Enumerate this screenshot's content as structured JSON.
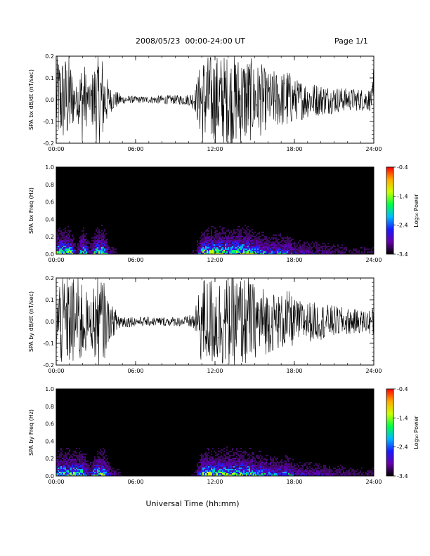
{
  "header": {
    "title": "2008/05/23  00:00-24:00 UT",
    "page": "Page 1/1"
  },
  "footer": {
    "xlabel": "Universal Time (hh:mm)"
  },
  "colorbar": {
    "label": "Log₁₀ Power",
    "ticks": [
      "-0.4",
      "-1.4",
      "-2.4",
      "-3.4"
    ],
    "range": [
      -3.4,
      -0.4
    ],
    "colors": [
      "#000000",
      "#6600aa",
      "#1a1aff",
      "#00bbff",
      "#00ff44",
      "#ccff00",
      "#ffaa00",
      "#ff0000"
    ]
  },
  "chart_data": [
    {
      "type": "line",
      "panel": "bx_time_series",
      "ylabel": "SPA bx dB/dt (nT/sec)",
      "xlim": [
        0,
        24
      ],
      "ylim": [
        -0.2,
        0.2
      ],
      "xticks": [
        "00:00",
        "06:00",
        "12:00",
        "18:00",
        "24:00"
      ],
      "yticks": [
        "0.2",
        "0.1",
        "0.0",
        "-0.1",
        "-0.2"
      ],
      "series": [
        {
          "hours": [
            0,
            0.5,
            1.0,
            1.5,
            2.0,
            2.5,
            3.0,
            3.5,
            4.0,
            5.0,
            6.0,
            7.0,
            8.0,
            9.0,
            10.0,
            10.5,
            11.0,
            11.5,
            12.0,
            12.5,
            13.0,
            13.5,
            14.0,
            14.5,
            15.0,
            15.5,
            16.0,
            16.5,
            17.0,
            17.5,
            18.0,
            18.5,
            19.0,
            20.0,
            21.0,
            22.0,
            23.0,
            23.9,
            24.0
          ],
          "amplitude": [
            0.2,
            0.2,
            0.2,
            0.06,
            0.2,
            0.06,
            0.2,
            0.2,
            0.06,
            0.02,
            0.015,
            0.015,
            0.02,
            0.02,
            0.025,
            0.05,
            0.2,
            0.2,
            0.2,
            0.2,
            0.2,
            0.2,
            0.2,
            0.2,
            0.16,
            0.16,
            0.12,
            0.13,
            0.12,
            0.14,
            0.09,
            0.09,
            0.08,
            0.07,
            0.06,
            0.05,
            0.05,
            0.05,
            0.2
          ]
        }
      ]
    },
    {
      "type": "heatmap",
      "panel": "bx_spectrogram",
      "ylabel": "SPA bx Freq (Hz)",
      "xlim": [
        0,
        24
      ],
      "ylim": [
        0,
        1.0
      ],
      "xticks": [
        "00:00",
        "06:00",
        "12:00",
        "18:00",
        "24:00"
      ],
      "yticks": [
        "1.0",
        "0.8",
        "0.6",
        "0.4",
        "0.2",
        "0.0"
      ],
      "zlabel": "Log₁₀ Power",
      "zlim": [
        -3.4,
        -0.4
      ],
      "activity": {
        "hours": [
          0,
          0.5,
          1.0,
          1.5,
          2.0,
          2.5,
          3.0,
          3.5,
          4.0,
          5.0,
          6.0,
          7.0,
          8.0,
          9.0,
          10.0,
          10.5,
          11.0,
          11.5,
          12.0,
          12.5,
          13.0,
          13.5,
          14.0,
          14.5,
          15.0,
          15.5,
          16.0,
          16.5,
          17.0,
          17.5,
          18.0,
          18.5,
          19.0,
          20.0,
          21.0,
          22.0,
          23.0,
          23.9,
          24.0
        ],
        "level": [
          0.2,
          0.2,
          0.2,
          0.06,
          0.2,
          0.06,
          0.2,
          0.2,
          0.06,
          0.02,
          0.015,
          0.015,
          0.02,
          0.02,
          0.025,
          0.05,
          0.2,
          0.2,
          0.2,
          0.2,
          0.2,
          0.2,
          0.2,
          0.2,
          0.16,
          0.16,
          0.12,
          0.13,
          0.12,
          0.14,
          0.09,
          0.09,
          0.08,
          0.07,
          0.06,
          0.05,
          0.05,
          0.05,
          0.2
        ]
      }
    },
    {
      "type": "line",
      "panel": "by_time_series",
      "ylabel": "SPA by dB/dt (nT/sec)",
      "xlim": [
        0,
        24
      ],
      "ylim": [
        -0.2,
        0.2
      ],
      "xticks": [
        "00:00",
        "06:00",
        "12:00",
        "18:00",
        "24:00"
      ],
      "yticks": [
        "0.2",
        "0.1",
        "0.0",
        "-0.1",
        "-0.2"
      ],
      "series": [
        {
          "hours": [
            0,
            0.5,
            1.0,
            1.5,
            2.0,
            2.5,
            3.0,
            3.5,
            4.0,
            5.0,
            6.0,
            7.0,
            8.0,
            9.0,
            10.0,
            10.5,
            11.0,
            11.5,
            12.0,
            12.5,
            13.0,
            13.5,
            14.0,
            14.5,
            15.0,
            15.5,
            16.0,
            16.5,
            17.0,
            17.5,
            18.0,
            18.5,
            19.0,
            20.0,
            21.0,
            22.0,
            23.0,
            23.9,
            24.0
          ],
          "amplitude": [
            0.2,
            0.2,
            0.2,
            0.2,
            0.2,
            0.08,
            0.2,
            0.2,
            0.08,
            0.03,
            0.02,
            0.02,
            0.02,
            0.02,
            0.025,
            0.05,
            0.2,
            0.2,
            0.2,
            0.2,
            0.2,
            0.2,
            0.2,
            0.2,
            0.16,
            0.16,
            0.14,
            0.13,
            0.12,
            0.14,
            0.1,
            0.09,
            0.09,
            0.08,
            0.07,
            0.06,
            0.05,
            0.06,
            0.2
          ]
        }
      ]
    },
    {
      "type": "heatmap",
      "panel": "by_spectrogram",
      "ylabel": "SPA by Freq (Hz)",
      "xlim": [
        0,
        24
      ],
      "ylim": [
        0,
        1.0
      ],
      "xticks": [
        "00:00",
        "06:00",
        "12:00",
        "18:00",
        "24:00"
      ],
      "yticks": [
        "1.0",
        "0.8",
        "0.6",
        "0.4",
        "0.2",
        "0.0"
      ],
      "zlabel": "Log₁₀ Power",
      "zlim": [
        -3.4,
        -0.4
      ],
      "activity": {
        "hours": [
          0,
          0.5,
          1.0,
          1.5,
          2.0,
          2.5,
          3.0,
          3.5,
          4.0,
          5.0,
          6.0,
          7.0,
          8.0,
          9.0,
          10.0,
          10.5,
          11.0,
          11.5,
          12.0,
          12.5,
          13.0,
          13.5,
          14.0,
          14.5,
          15.0,
          15.5,
          16.0,
          16.5,
          17.0,
          17.5,
          18.0,
          18.5,
          19.0,
          20.0,
          21.0,
          22.0,
          23.0,
          23.9,
          24.0
        ],
        "level": [
          0.2,
          0.2,
          0.2,
          0.2,
          0.2,
          0.08,
          0.2,
          0.2,
          0.08,
          0.03,
          0.02,
          0.02,
          0.02,
          0.02,
          0.025,
          0.05,
          0.2,
          0.2,
          0.2,
          0.2,
          0.2,
          0.2,
          0.2,
          0.2,
          0.16,
          0.16,
          0.14,
          0.13,
          0.12,
          0.14,
          0.1,
          0.09,
          0.09,
          0.08,
          0.07,
          0.06,
          0.05,
          0.06,
          0.2
        ]
      }
    }
  ]
}
